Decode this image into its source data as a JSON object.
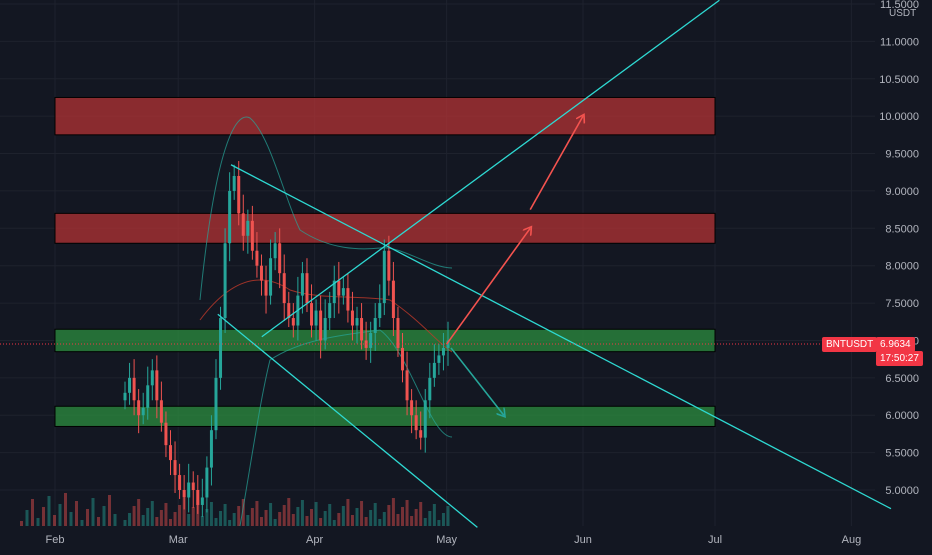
{
  "symbol": "BNTUSDT",
  "last_price": "6.9634",
  "countdown": "17:50:27",
  "unit": "USDT",
  "colors": {
    "background": "#131722",
    "grid": "#1e222d",
    "up": "#26a69a",
    "down": "#ef5350",
    "trendline": "#2ed9d2",
    "resistance": "#b83335",
    "support": "#2c9140",
    "price_tag": "#f23645",
    "target_arrow": "#f4534f",
    "down_arrow": "#26a69a"
  },
  "chart_data": {
    "type": "candlestick",
    "y_axis": {
      "ticks": [
        "5.0000",
        "5.5000",
        "6.0000",
        "6.5000",
        "7.0000",
        "7.5000",
        "8.0000",
        "8.5000",
        "9.0000",
        "9.5000",
        "10.0000",
        "10.5000",
        "11.0000",
        "11.5000"
      ],
      "ylim": [
        4.55,
        11.55
      ]
    },
    "x_axis": {
      "ticks": [
        "Feb",
        "Mar",
        "Apr",
        "May",
        "Jun",
        "Jul",
        "Aug"
      ]
    },
    "zones": [
      {
        "kind": "resistance",
        "low": 9.75,
        "high": 10.25,
        "from": "2022-02-01",
        "to": "2022-07-01"
      },
      {
        "kind": "resistance",
        "low": 8.3,
        "high": 8.7,
        "from": "2022-02-01",
        "to": "2022-07-01"
      },
      {
        "kind": "support",
        "low": 6.85,
        "high": 7.15,
        "from": "2022-02-01",
        "to": "2022-07-01"
      },
      {
        "kind": "support",
        "low": 5.85,
        "high": 6.12,
        "from": "2022-02-01",
        "to": "2022-07-01"
      }
    ],
    "trendlines": [
      {
        "name": "channel-top",
        "from": [
          "2022-03-13",
          9.35
        ],
        "to": [
          "2022-08-10",
          4.75
        ]
      },
      {
        "name": "channel-bottom",
        "from": [
          "2022-03-10",
          7.35
        ],
        "to": [
          "2022-05-08",
          4.5
        ]
      },
      {
        "name": "rising-line",
        "from": [
          "2022-03-20",
          7.05
        ],
        "to": [
          "2022-07-02",
          11.55
        ]
      }
    ],
    "arrows": [
      {
        "kind": "bull-1",
        "from": [
          "2022-05-01",
          6.95
        ],
        "to": [
          "2022-05-20",
          8.5
        ]
      },
      {
        "kind": "bull-2",
        "from": [
          "2022-05-20",
          8.75
        ],
        "to": [
          "2022-06-01",
          10.0
        ]
      },
      {
        "kind": "bear",
        "from": [
          "2022-05-02",
          6.9
        ],
        "to": [
          "2022-05-14",
          6.0
        ]
      }
    ]
  }
}
